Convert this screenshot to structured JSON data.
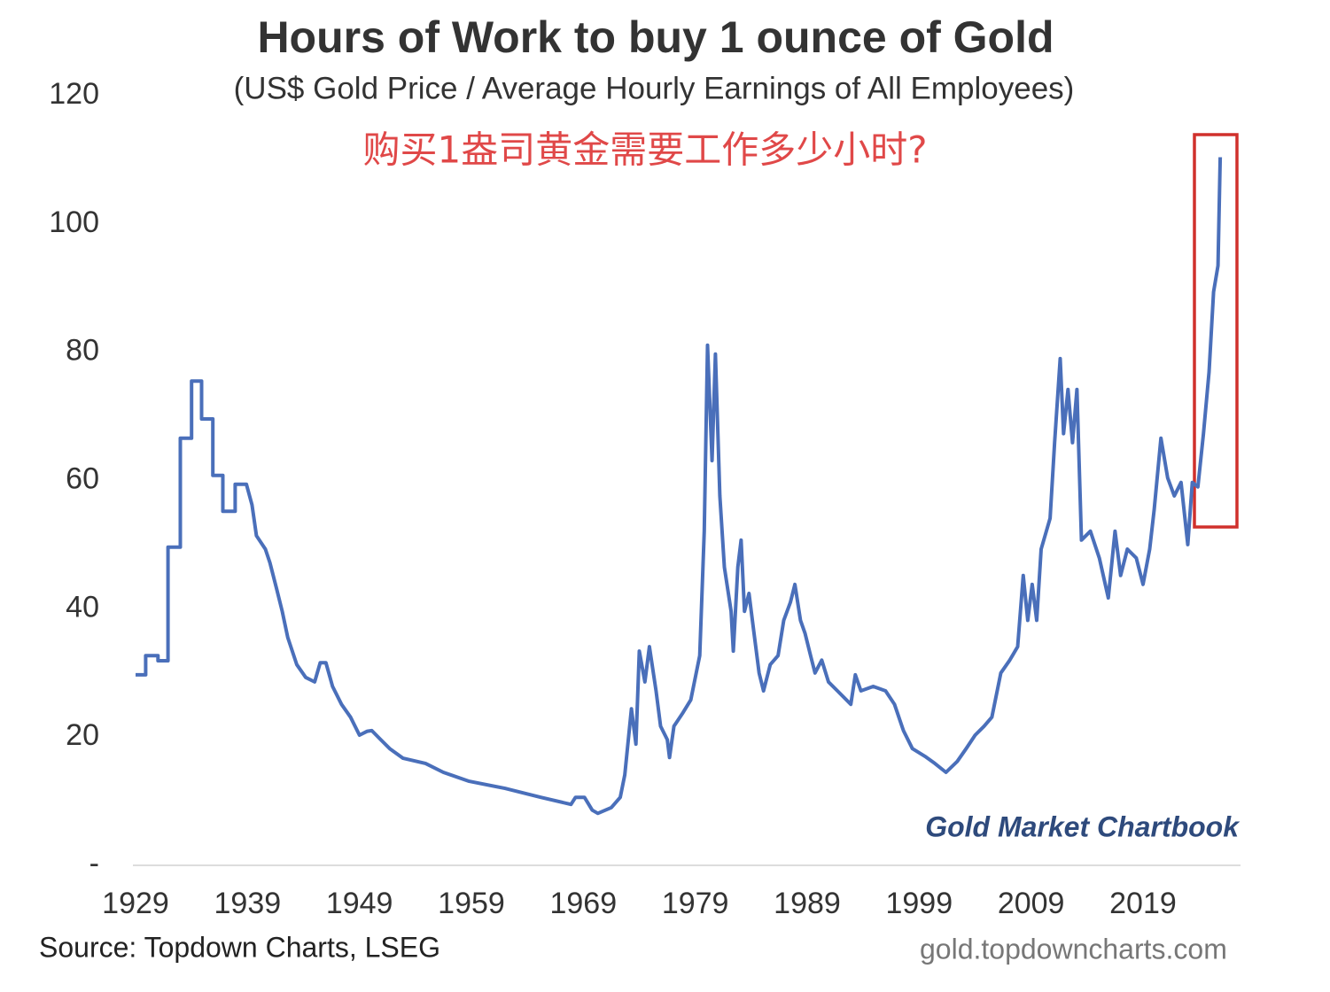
{
  "chart_data": {
    "type": "line",
    "title": "Hours of Work to buy 1 ounce of Gold",
    "subtitle": "(US$ Gold Price / Average Hourly Earnings of All Employees)",
    "annotation": "购买1盎司黄金需要工作多少小时?",
    "brand": "Gold Market Chartbook",
    "source": "Source: Topdown Charts, LSEG",
    "website": "gold.topdowncharts.com",
    "color": "#4a6fba",
    "x": [
      1929.0,
      1929.9,
      1929.9,
      1931.0,
      1931.0,
      1931.9,
      1931.9,
      1933.0,
      1933.0,
      1934.0,
      1934.0,
      1934.9,
      1934.9,
      1935.9,
      1935.9,
      1936.8,
      1936.8,
      1937.9,
      1937.9,
      1938.9,
      1939.4,
      1939.8,
      1940.6,
      1941.0,
      1941.6,
      1942.1,
      1942.6,
      1943.4,
      1944.2,
      1945.0,
      1945.5,
      1946.0,
      1946.6,
      1947.4,
      1948.2,
      1949.0,
      1949.7,
      1950.1,
      1950.9,
      1951.7,
      1952.9,
      1954.9,
      1956.5,
      1958.8,
      1962.0,
      1965.2,
      1967.9,
      1968.3,
      1969.1,
      1969.8,
      1970.3,
      1971.5,
      1972.3,
      1972.7,
      1973.3,
      1973.7,
      1974.0,
      1974.5,
      1974.9,
      1975.5,
      1975.9,
      1976.5,
      1976.7,
      1977.1,
      1977.9,
      1978.6,
      1979.4,
      1979.8,
      1980.1,
      1980.5,
      1980.8,
      1981.2,
      1981.6,
      1982.2,
      1982.4,
      1982.8,
      1983.1,
      1983.4,
      1983.8,
      1984.2,
      1984.7,
      1985.1,
      1985.7,
      1986.4,
      1986.9,
      1987.5,
      1987.9,
      1988.4,
      1988.8,
      1989.3,
      1989.7,
      1990.3,
      1990.9,
      1991.7,
      1992.9,
      1993.3,
      1993.8,
      1994.9,
      1996.0,
      1996.8,
      1997.6,
      1998.4,
      1999.6,
      2000.4,
      2001.4,
      2002.4,
      2003.2,
      2004.0,
      2004.8,
      2005.5,
      2006.3,
      2007.1,
      2007.8,
      2008.3,
      2008.7,
      2009.1,
      2009.5,
      2009.9,
      2010.7,
      2011.1,
      2011.6,
      2011.9,
      2012.3,
      2012.7,
      2013.1,
      2013.5,
      2014.3,
      2015.1,
      2015.9,
      2016.5,
      2017.0,
      2017.6,
      2018.4,
      2019.0,
      2019.6,
      2020.0,
      2020.6,
      2021.2,
      2021.8,
      2022.4,
      2023.0,
      2023.4,
      2023.9,
      2024.4,
      2024.9,
      2025.3,
      2025.7,
      2025.9
    ],
    "values": [
      29.7,
      29.7,
      32.7,
      32.7,
      31.9,
      31.9,
      49.6,
      49.6,
      66.6,
      66.6,
      75.5,
      75.5,
      69.6,
      69.6,
      60.8,
      60.8,
      55.2,
      55.2,
      59.4,
      59.4,
      56.2,
      51.4,
      49.3,
      47.2,
      43.1,
      39.6,
      35.5,
      31.3,
      29.3,
      28.6,
      31.6,
      31.6,
      27.9,
      25.1,
      23.1,
      20.3,
      20.9,
      21.0,
      19.6,
      18.2,
      16.7,
      15.9,
      14.5,
      13.1,
      12.0,
      10.6,
      9.5,
      10.6,
      10.6,
      8.6,
      8.1,
      9.0,
      10.6,
      14.1,
      24.4,
      18.9,
      33.4,
      28.6,
      34.1,
      27.2,
      21.7,
      19.6,
      16.8,
      21.7,
      23.8,
      25.8,
      32.7,
      52.1,
      81.1,
      63.1,
      79.7,
      57.6,
      46.5,
      39.6,
      33.4,
      46.5,
      50.7,
      39.6,
      42.4,
      36.9,
      30.0,
      27.2,
      31.3,
      32.7,
      38.2,
      41.0,
      43.8,
      38.2,
      36.2,
      32.7,
      30.0,
      32.0,
      28.6,
      27.2,
      25.1,
      29.7,
      27.2,
      27.9,
      27.2,
      25.1,
      21.0,
      18.2,
      16.9,
      15.9,
      14.5,
      16.2,
      18.2,
      20.3,
      21.7,
      23.1,
      30.0,
      32.0,
      34.1,
      45.2,
      38.2,
      43.8,
      38.2,
      49.3,
      54.1,
      65.9,
      79.0,
      67.3,
      74.2,
      65.9,
      74.2,
      50.7,
      52.1,
      47.9,
      41.7,
      52.1,
      45.2,
      49.3,
      47.9,
      43.8,
      49.3,
      55.5,
      66.6,
      60.4,
      57.6,
      59.7,
      50.0,
      59.7,
      59.0,
      67.3,
      76.9,
      89.4,
      93.5,
      110.4
    ],
    "xlim": [
      1929,
      2027
    ],
    "xticks": [
      1929,
      1939,
      1949,
      1959,
      1969,
      1979,
      1989,
      1999,
      2009,
      2019
    ],
    "ylim": [
      0,
      120
    ],
    "yticks": [
      {
        "value": 0,
        "label": "-"
      },
      20,
      40,
      60,
      80,
      100,
      120
    ],
    "grid": false
  }
}
